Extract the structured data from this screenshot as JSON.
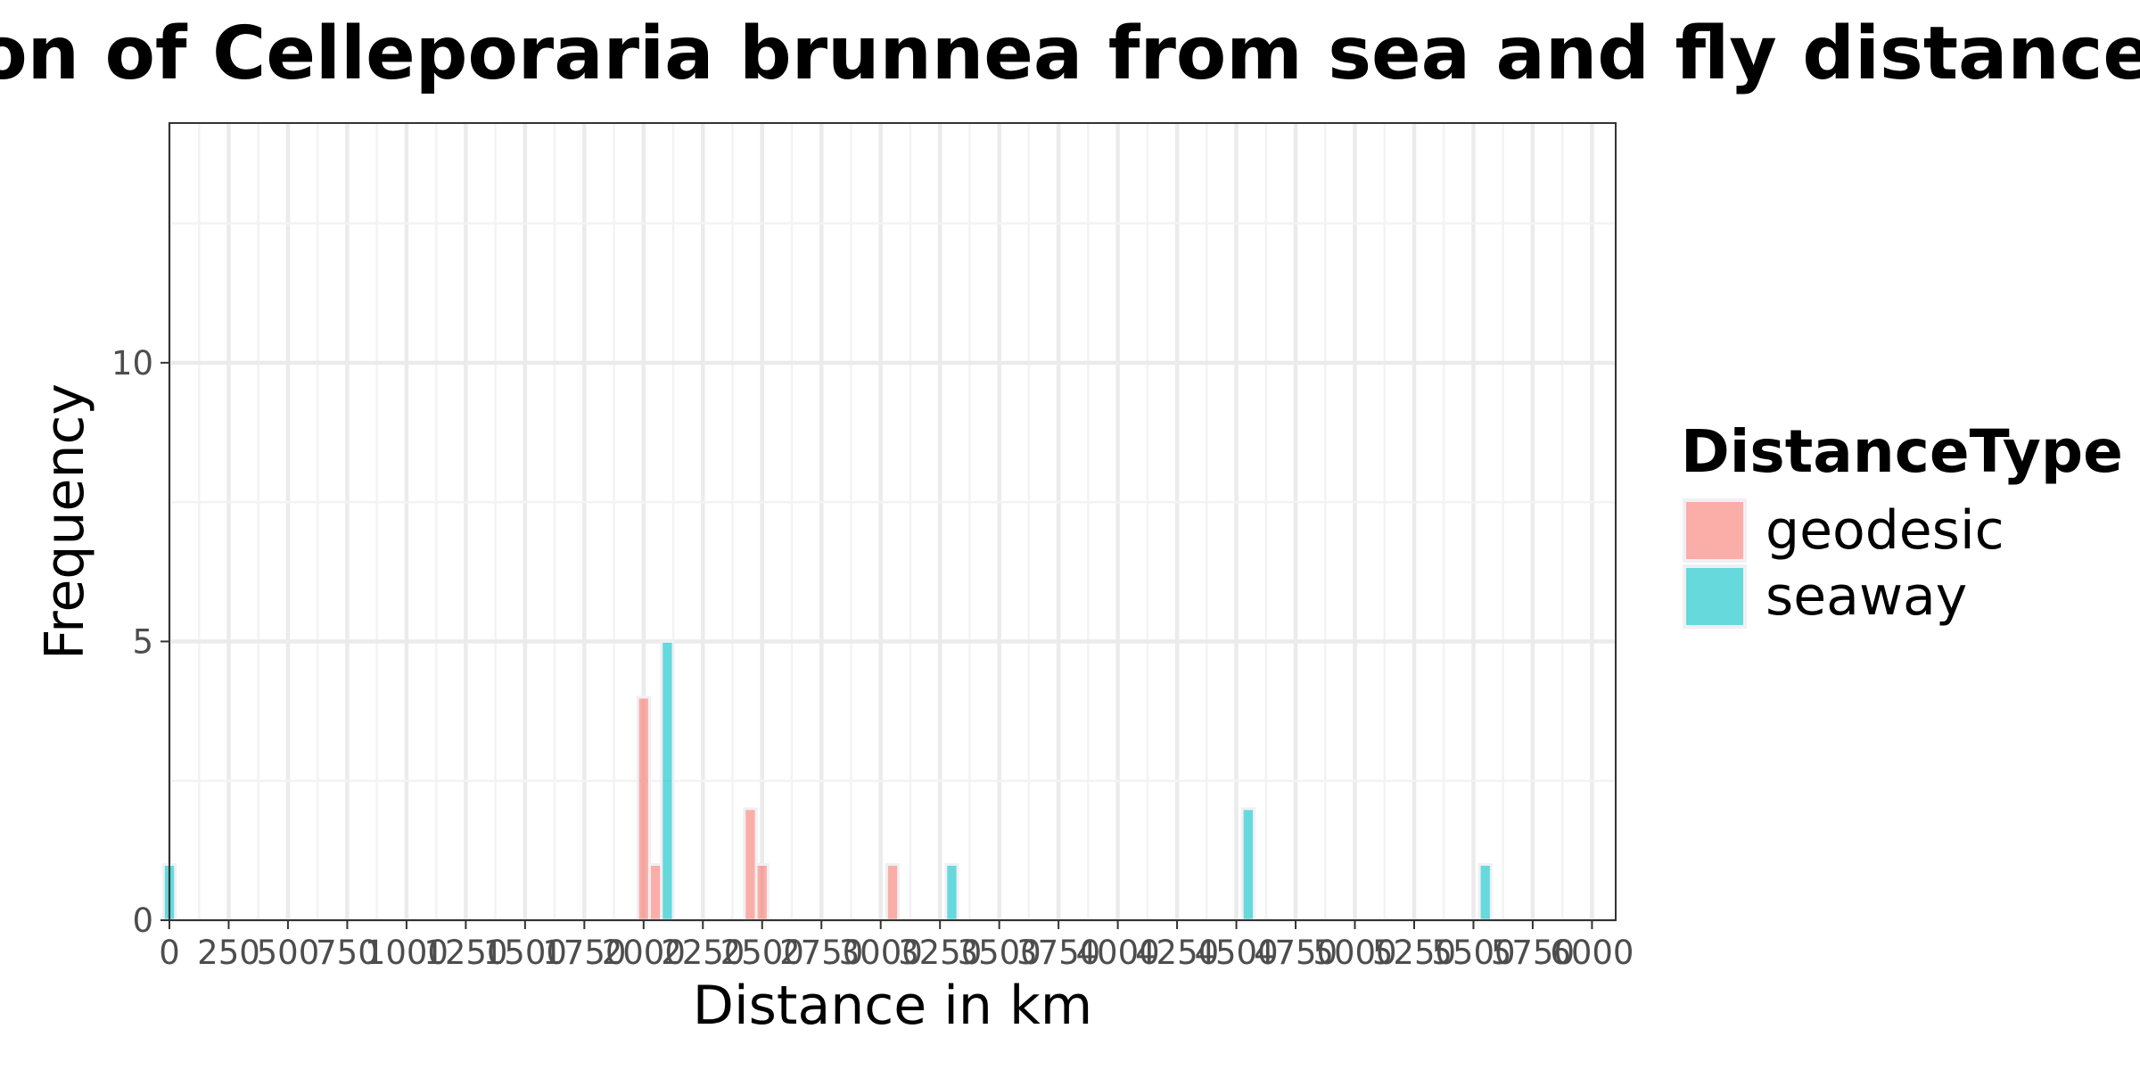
{
  "chart_data": {
    "type": "bar",
    "title": "Distribution of Celleporaria brunnea from sea and fly distances",
    "xlabel": "Distance in km",
    "ylabel": "Frequency",
    "xlim": [
      0,
      6100
    ],
    "ylim": [
      0,
      14.3
    ],
    "x_ticks": [
      0,
      250,
      500,
      750,
      1000,
      1250,
      1500,
      1750,
      2000,
      2250,
      2500,
      2750,
      3000,
      3250,
      3500,
      3750,
      4000,
      4250,
      4500,
      4750,
      5000,
      5250,
      5500,
      5750,
      6000
    ],
    "y_ticks": [
      0,
      5,
      10
    ],
    "bin_width": 50,
    "grid": true,
    "legend": {
      "title": "DistanceType",
      "position": "right",
      "entries": [
        "geodesic",
        "seaway"
      ]
    },
    "series": [
      {
        "name": "geodesic",
        "color": "#F8766D",
        "bins": [
          {
            "x": 2000,
            "count": 4
          },
          {
            "x": 2050,
            "count": 1
          },
          {
            "x": 2450,
            "count": 2
          },
          {
            "x": 2500,
            "count": 1
          },
          {
            "x": 3050,
            "count": 1
          }
        ]
      },
      {
        "name": "seaway",
        "color": "#00BFC4",
        "bins": [
          {
            "x": 0,
            "count": 1
          },
          {
            "x": 2100,
            "count": 5
          },
          {
            "x": 3300,
            "count": 1
          },
          {
            "x": 4550,
            "count": 2
          },
          {
            "x": 5550,
            "count": 1
          }
        ]
      }
    ]
  }
}
